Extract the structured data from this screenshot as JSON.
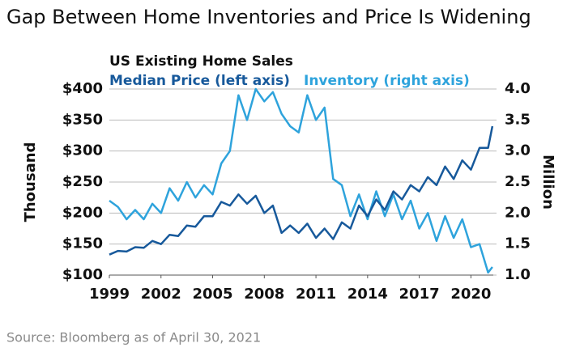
{
  "chart_data": {
    "type": "line",
    "title": "Gap Between Home Inventories and Price Is Widening",
    "subtitle": "US Existing Home Sales",
    "ylabel": "Thousand",
    "y2label": "Million",
    "source": "Source: Bloomberg as of April 30, 2021",
    "x": [
      1999,
      1999.5,
      2000,
      2000.5,
      2001,
      2001.5,
      2002,
      2002.5,
      2003,
      2003.5,
      2004,
      2004.5,
      2005,
      2005.5,
      2006,
      2006.5,
      2007,
      2007.5,
      2008,
      2008.5,
      2009,
      2009.5,
      2010,
      2010.5,
      2011,
      2011.5,
      2012,
      2012.5,
      2013,
      2013.5,
      2014,
      2014.5,
      2015,
      2015.5,
      2016,
      2016.5,
      2017,
      2017.5,
      2018,
      2018.5,
      2019,
      2019.5,
      2020,
      2020.5,
      2021,
      2021.25
    ],
    "series": [
      {
        "name": "Median Price (left axis)",
        "color": "#17599b",
        "axis": "y",
        "values": [
          133,
          139,
          138,
          145,
          144,
          155,
          150,
          165,
          163,
          180,
          178,
          195,
          195,
          218,
          212,
          230,
          215,
          228,
          200,
          212,
          168,
          180,
          168,
          183,
          160,
          175,
          158,
          185,
          175,
          212,
          195,
          222,
          205,
          235,
          222,
          245,
          235,
          258,
          245,
          275,
          255,
          285,
          270,
          305,
          305,
          340
        ]
      },
      {
        "name": "Inventory (right axis)",
        "color": "#2ea3dc",
        "axis": "y2",
        "values": [
          2.2,
          2.1,
          1.9,
          2.05,
          1.9,
          2.15,
          2.0,
          2.4,
          2.2,
          2.5,
          2.25,
          2.45,
          2.3,
          2.8,
          3.0,
          3.9,
          3.5,
          4.0,
          3.8,
          3.95,
          3.6,
          3.4,
          3.3,
          3.9,
          3.5,
          3.7,
          2.55,
          2.45,
          1.95,
          2.3,
          1.9,
          2.35,
          1.95,
          2.3,
          1.9,
          2.2,
          1.75,
          2.0,
          1.55,
          1.95,
          1.6,
          1.9,
          1.45,
          1.5,
          1.04,
          1.13
        ]
      }
    ],
    "xlim": [
      1999,
      2021.3
    ],
    "xticks": [
      1999,
      2002,
      2005,
      2008,
      2011,
      2014,
      2017,
      2020
    ],
    "ylim": [
      100,
      400
    ],
    "yticks": [
      {
        "value": 100,
        "label": "$100"
      },
      {
        "value": 150,
        "label": "$150"
      },
      {
        "value": 200,
        "label": "$200"
      },
      {
        "value": 250,
        "label": "$250"
      },
      {
        "value": 300,
        "label": "$300"
      },
      {
        "value": 350,
        "label": "$350"
      },
      {
        "value": 400,
        "label": "$400"
      }
    ],
    "y2lim": [
      1,
      4
    ],
    "y2ticks": [
      {
        "value": 1,
        "label": "1.0"
      },
      1.5,
      {
        "value": 2,
        "label": "2.0"
      },
      2.5,
      {
        "value": 3,
        "label": "3.0"
      },
      3.5,
      {
        "value": 4,
        "label": "4.0"
      }
    ],
    "grid": true
  }
}
